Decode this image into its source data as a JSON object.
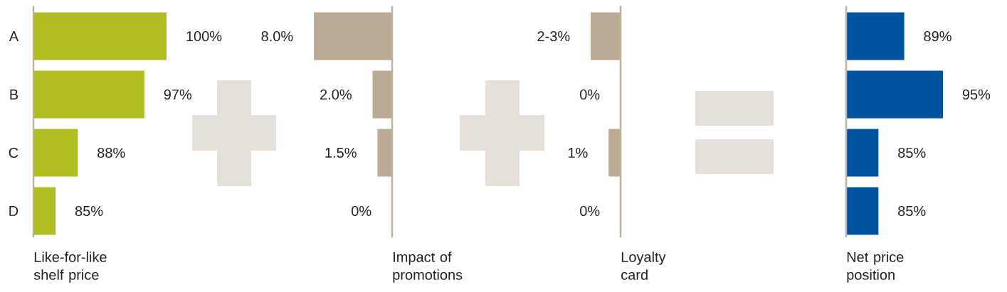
{
  "chart_data": [
    {
      "type": "bar",
      "orientation": "horizontal",
      "categories": [
        "A",
        "B",
        "C",
        "D"
      ],
      "values": [
        100,
        97,
        88,
        85
      ],
      "value_labels": [
        "100%",
        "97%",
        "88%",
        "85%"
      ],
      "color": "#b0be22",
      "xlim": [
        82,
        100
      ],
      "xlabel": "Like-for-like shelf price",
      "tick_labels": "y"
    },
    {
      "type": "bar",
      "orientation": "horizontal",
      "categories": [
        null,
        null,
        null,
        null
      ],
      "values": [
        8.0,
        2.0,
        1.5,
        0
      ],
      "value_labels": [
        "8.0%",
        "2.0%",
        "1.5%",
        "0%"
      ],
      "color": "#bbab94",
      "xlim": [
        8,
        0
      ],
      "xlabel": "Impact of promotions",
      "tick_labels": false
    },
    {
      "type": "bar",
      "orientation": "horizontal",
      "categories": [
        null,
        null,
        null,
        null
      ],
      "values": [
        2.5,
        0,
        1,
        0
      ],
      "value_labels": [
        "2-3%",
        "0%",
        "1%",
        "0%"
      ],
      "color": "#bbab94",
      "xlim": [
        2.5,
        0
      ],
      "xlabel": "Loyalty card",
      "tick_labels": false
    },
    {
      "type": "bar",
      "orientation": "horizontal",
      "categories": [
        null,
        null,
        null,
        null
      ],
      "values": [
        89,
        95,
        85,
        85
      ],
      "value_labels": [
        "89%",
        "95%",
        "85%",
        "85%"
      ],
      "color": "#00539f",
      "xlim": [
        80,
        95
      ],
      "xlabel": "Net price position",
      "tick_labels": false
    }
  ]
}
